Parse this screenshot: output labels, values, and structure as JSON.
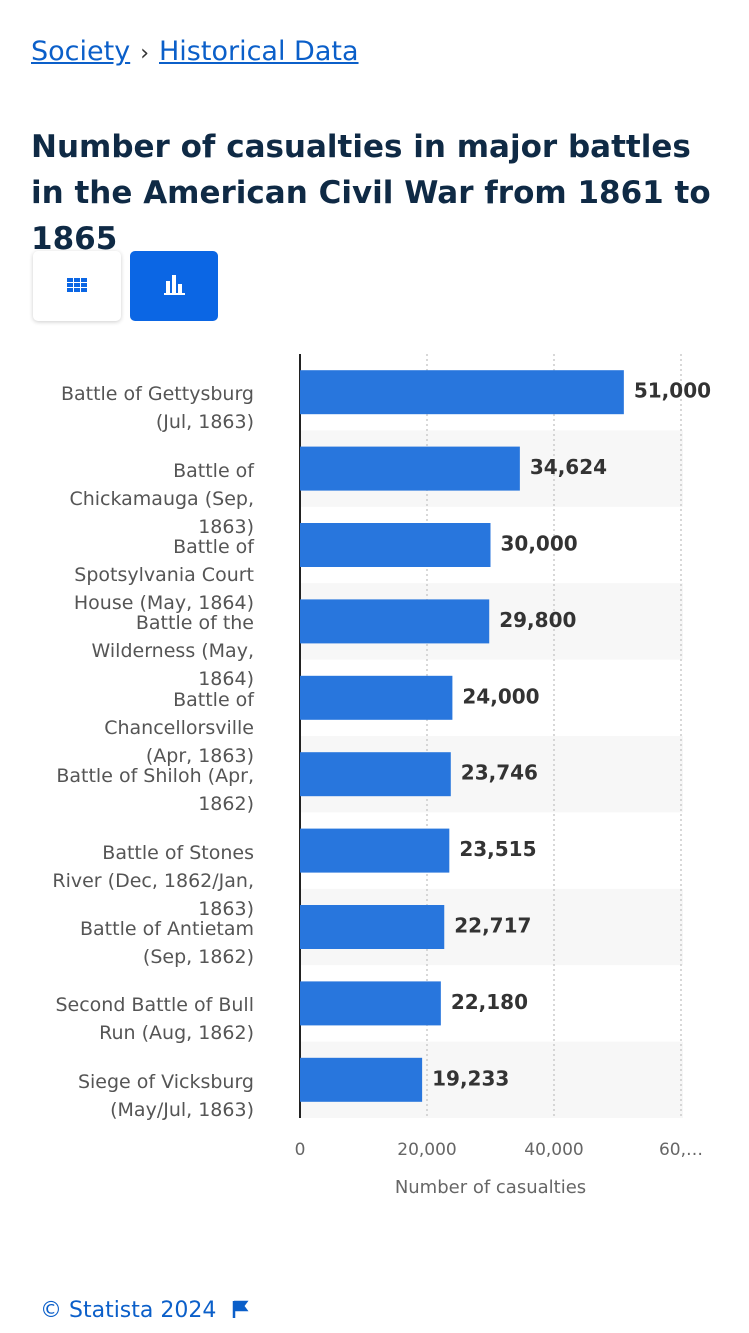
{
  "breadcrumb": {
    "items": [
      "Society",
      "Historical Data"
    ],
    "separator": "›"
  },
  "chart_data": {
    "type": "bar",
    "orientation": "horizontal",
    "title": "Number of casualties in major battles in the American Civil War from 1861 to 1865",
    "categories": [
      "Battle of Gettysburg (Jul, 1863)",
      "Battle of Chickamauga (Sep, 1863)",
      "Battle of Spotsylvania Court House (May, 1864)",
      "Battle of the Wilderness (May, 1864)",
      "Battle of Chancellorsville (Apr, 1863)",
      "Battle of Shiloh (Apr, 1862)",
      "Battle of Stones River (Dec, 1862/Jan, 1863)",
      "Battle of Antietam (Sep, 1862)",
      "Second Battle of Bull Run (Aug, 1862)",
      "Siege of Vicksburg (May/Jul, 1863)"
    ],
    "values": [
      51000,
      34624,
      30000,
      29800,
      24000,
      23746,
      23515,
      22717,
      22180,
      19233
    ],
    "value_labels": [
      "51,000",
      "34,624",
      "30,000",
      "29,800",
      "24,000",
      "23,746",
      "23,515",
      "22,717",
      "22,180",
      "19,233"
    ],
    "color": "#2876dd",
    "xlabel": "Number of casualties",
    "xlim": [
      0,
      60000
    ],
    "xticks": [
      0,
      {
        "value": 20000,
        "label": "20,000"
      },
      {
        "value": 40000,
        "label": "40,000"
      },
      {
        "value": 60000,
        "label": "60,…"
      }
    ],
    "grid": true
  },
  "footer": {
    "copyright": "© Statista 2024"
  }
}
